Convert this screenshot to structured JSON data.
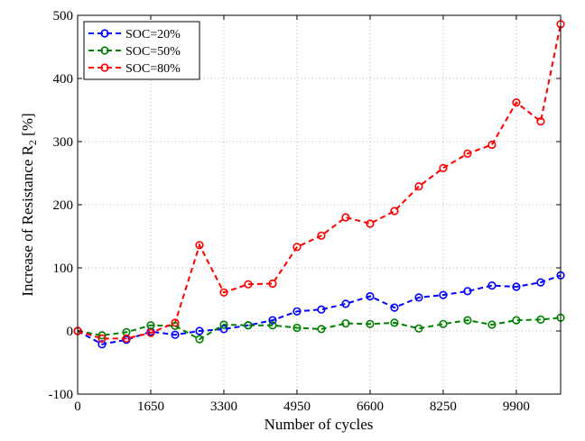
{
  "chart_data": {
    "type": "line",
    "title": "",
    "xlabel": "Number of cycles",
    "ylabel_main": "Increase of Resistance R",
    "ylabel_sub": "2",
    "ylabel_unit": " [%]",
    "xlim": [
      0,
      10900
    ],
    "ylim": [
      -100,
      500
    ],
    "xticks": [
      0,
      1650,
      3300,
      4950,
      6600,
      8250,
      9900
    ],
    "yticks": [
      -100,
      0,
      100,
      200,
      300,
      400,
      500
    ],
    "grid": true,
    "legend_position": "top-left",
    "x": [
      0,
      550,
      1100,
      1650,
      2200,
      2750,
      3300,
      3850,
      4400,
      4950,
      5500,
      6050,
      6600,
      7150,
      7700,
      8250,
      8800,
      9350,
      9900,
      10450,
      10900
    ],
    "series": [
      {
        "name": "SOC=20%",
        "color": "#0000ff",
        "values": [
          0,
          -21,
          -14,
          -1,
          -6,
          0,
          3,
          9,
          17,
          31,
          34,
          43,
          55,
          37,
          53,
          57,
          63,
          72,
          70,
          77,
          88
        ]
      },
      {
        "name": "SOC=50%",
        "color": "#008000",
        "values": [
          0,
          -7,
          -2,
          9,
          8,
          -13,
          10,
          9,
          9,
          5,
          3,
          12,
          11,
          13,
          4,
          11,
          17,
          10,
          17,
          18,
          21
        ]
      },
      {
        "name": "SOC=80%",
        "color": "#ff0000",
        "values": [
          0,
          -12,
          -12,
          -3,
          13,
          136,
          61,
          74,
          75,
          133,
          151,
          180,
          170,
          190,
          229,
          258,
          281,
          295,
          362,
          332,
          486
        ]
      }
    ]
  }
}
